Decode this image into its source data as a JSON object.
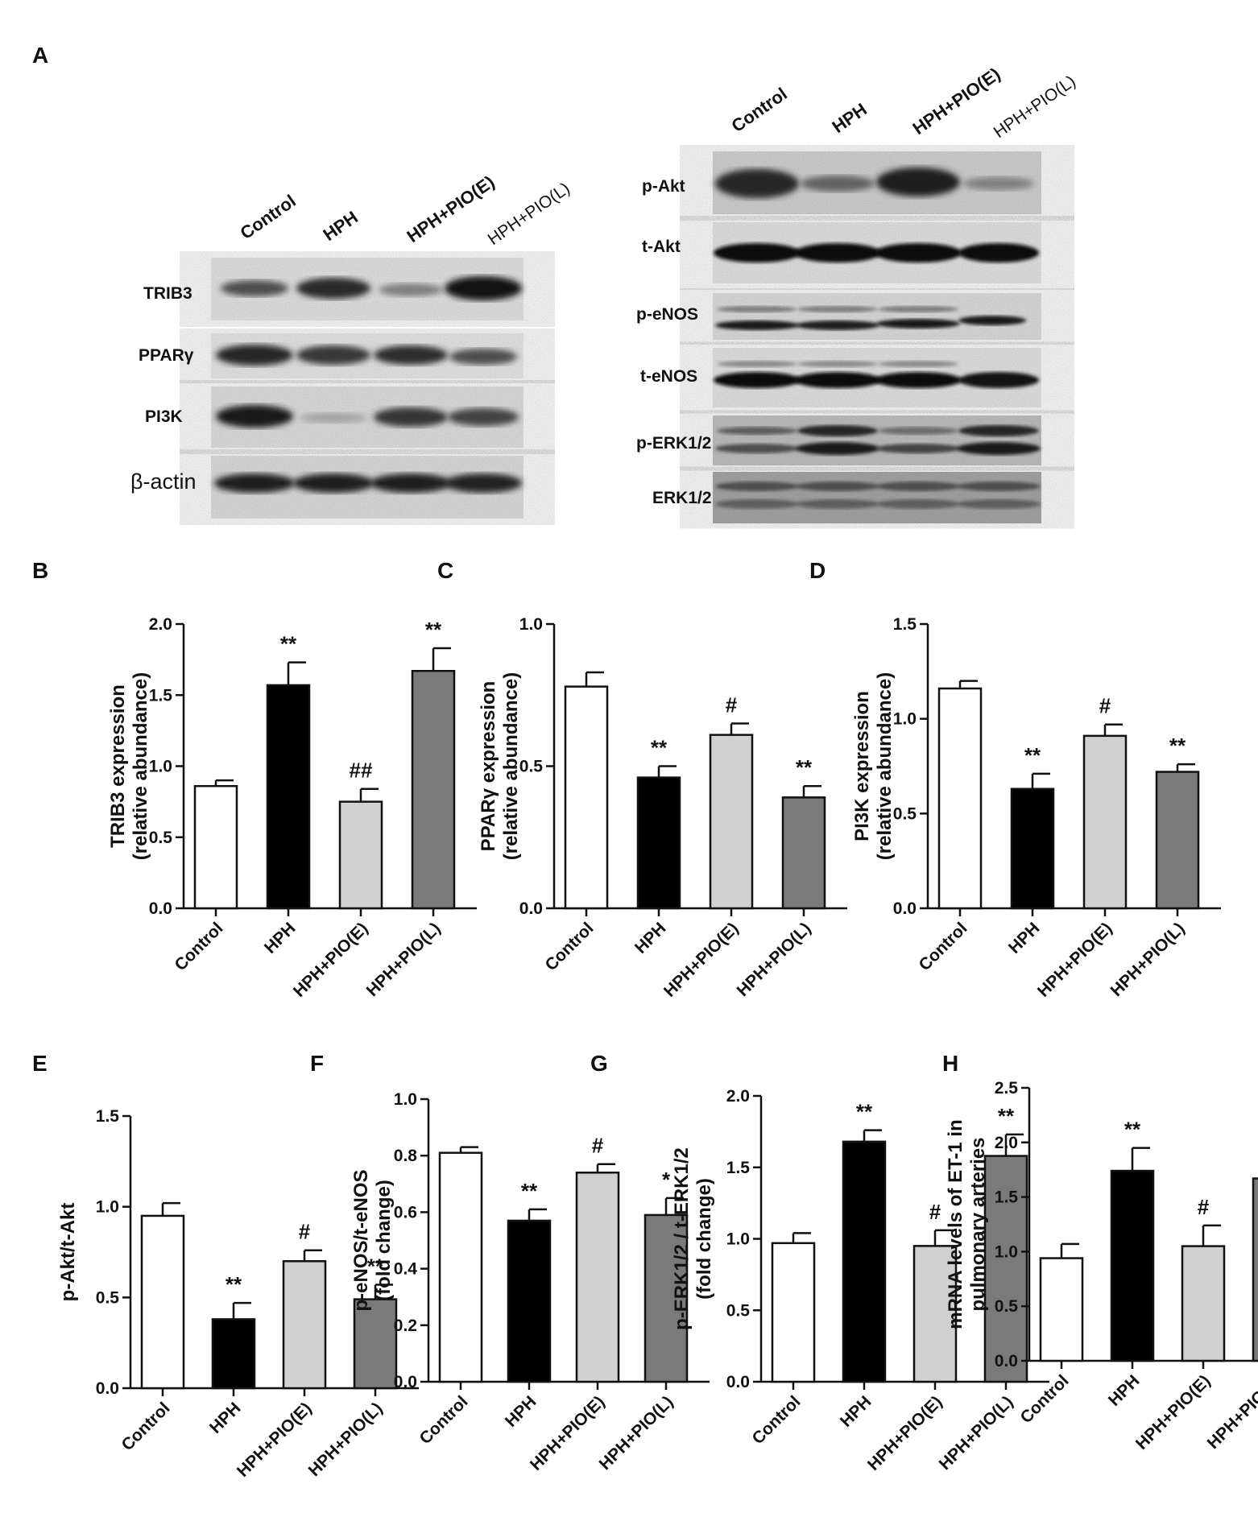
{
  "panel_a": {
    "letter": "A",
    "left_blot": {
      "lanes": [
        "Control",
        "HPH",
        "HPH+PIO(E)",
        "HPH+PIO(L)"
      ],
      "rows": [
        "TRIB3",
        "PPARγ",
        "PI3K",
        "β-actin"
      ]
    },
    "right_blot": {
      "lanes": [
        "Control",
        "HPH",
        "HPH+PIO(E)",
        "HPH+PIO(L)"
      ],
      "rows": [
        "p-Akt",
        "t-Akt",
        "p-eNOS",
        "t-eNOS",
        "p-ERK1/2",
        "ERK1/2"
      ]
    }
  },
  "colors": {
    "Control": "#ffffff",
    "HPH": "#000000",
    "HPH+PIO(E)": "#d0d0d0",
    "HPH+PIO(L)": "#7a7a7a"
  },
  "chart_data": [
    {
      "letter": "B",
      "type": "bar",
      "categories": [
        "Control",
        "HPH",
        "HPH+PIO(E)",
        "HPH+PIO(L)"
      ],
      "values": [
        0.86,
        1.57,
        0.75,
        1.67
      ],
      "errors": [
        0.04,
        0.16,
        0.09,
        0.16
      ],
      "significance": [
        "",
        "**",
        "##",
        "**"
      ],
      "ylabel": [
        "TRIB3 expression",
        "(relative abundance)"
      ],
      "ylim": [
        0,
        2.0
      ],
      "yticks": [
        "0.0",
        "0.5",
        "1.0",
        "1.5",
        "2.0"
      ]
    },
    {
      "letter": "C",
      "type": "bar",
      "categories": [
        "Control",
        "HPH",
        "HPH+PIO(E)",
        "HPH+PIO(L)"
      ],
      "values": [
        0.78,
        0.46,
        0.61,
        0.39
      ],
      "errors": [
        0.05,
        0.04,
        0.04,
        0.04
      ],
      "significance": [
        "",
        "**",
        "#",
        "**"
      ],
      "ylabel": [
        "PPARγ expression",
        "(relative abundance)"
      ],
      "ylim": [
        0,
        1.0
      ],
      "yticks": [
        "0.0",
        "0.5",
        "1.0"
      ]
    },
    {
      "letter": "D",
      "type": "bar",
      "categories": [
        "Control",
        "HPH",
        "HPH+PIO(E)",
        "HPH+PIO(L)"
      ],
      "values": [
        1.16,
        0.63,
        0.91,
        0.72
      ],
      "errors": [
        0.04,
        0.08,
        0.06,
        0.04
      ],
      "significance": [
        "",
        "**",
        "#",
        "**"
      ],
      "ylabel": [
        "PI3K expression",
        "(relative abundance)"
      ],
      "ylim": [
        0,
        1.5
      ],
      "yticks": [
        "0.0",
        "0.5",
        "1.0",
        "1.5"
      ]
    },
    {
      "letter": "E",
      "type": "bar",
      "categories": [
        "Control",
        "HPH",
        "HPH+PIO(E)",
        "HPH+PIO(L)"
      ],
      "values": [
        0.95,
        0.38,
        0.7,
        0.49
      ],
      "errors": [
        0.07,
        0.09,
        0.06,
        0.08
      ],
      "significance": [
        "",
        "**",
        "#",
        "**"
      ],
      "ylabel": [
        "p-Akt/t-Akt"
      ],
      "ylim": [
        0,
        1.5
      ],
      "yticks": [
        "0.0",
        "0.5",
        "1.0",
        "1.5"
      ]
    },
    {
      "letter": "F",
      "type": "bar",
      "categories": [
        "Control",
        "HPH",
        "HPH+PIO(E)",
        "HPH+PIO(L)"
      ],
      "values": [
        0.81,
        0.57,
        0.74,
        0.59
      ],
      "errors": [
        0.02,
        0.04,
        0.03,
        0.06
      ],
      "significance": [
        "",
        "**",
        "#",
        "*"
      ],
      "ylabel": [
        "p-eNOS/t-eNOS",
        "(fold change)"
      ],
      "ylim": [
        0,
        1.0
      ],
      "yticks": [
        "0.0",
        "0.2",
        "0.4",
        "0.6",
        "0.8",
        "1.0"
      ]
    },
    {
      "letter": "G",
      "type": "bar",
      "categories": [
        "Control",
        "HPH",
        "HPH+PIO(E)",
        "HPH+PIO(L)"
      ],
      "values": [
        0.97,
        1.68,
        0.95,
        1.58
      ],
      "errors": [
        0.07,
        0.08,
        0.11,
        0.15
      ],
      "significance": [
        "",
        "**",
        "#",
        "**"
      ],
      "ylabel": [
        "p-ERK1/2 / t-ERK1/2",
        "(fold change)"
      ],
      "ylim": [
        0,
        2.0
      ],
      "yticks": [
        "0.0",
        "0.5",
        "1.0",
        "1.5",
        "2.0"
      ]
    },
    {
      "letter": "H",
      "type": "bar",
      "categories": [
        "Control",
        "HPH",
        "HPH+PIO(E)",
        "HPH+PIO(L)"
      ],
      "values": [
        0.94,
        1.74,
        1.05,
        1.67
      ],
      "errors": [
        0.13,
        0.21,
        0.19,
        0.13
      ],
      "significance": [
        "",
        "**",
        "#",
        "**"
      ],
      "ylabel": [
        "mRNA levels of ET-1 in",
        "pulmonary arteries"
      ],
      "ylim": [
        0,
        2.5
      ],
      "yticks": [
        "0.0",
        "0.5",
        "1.0",
        "1.5",
        "2.0",
        "2.5"
      ]
    }
  ]
}
